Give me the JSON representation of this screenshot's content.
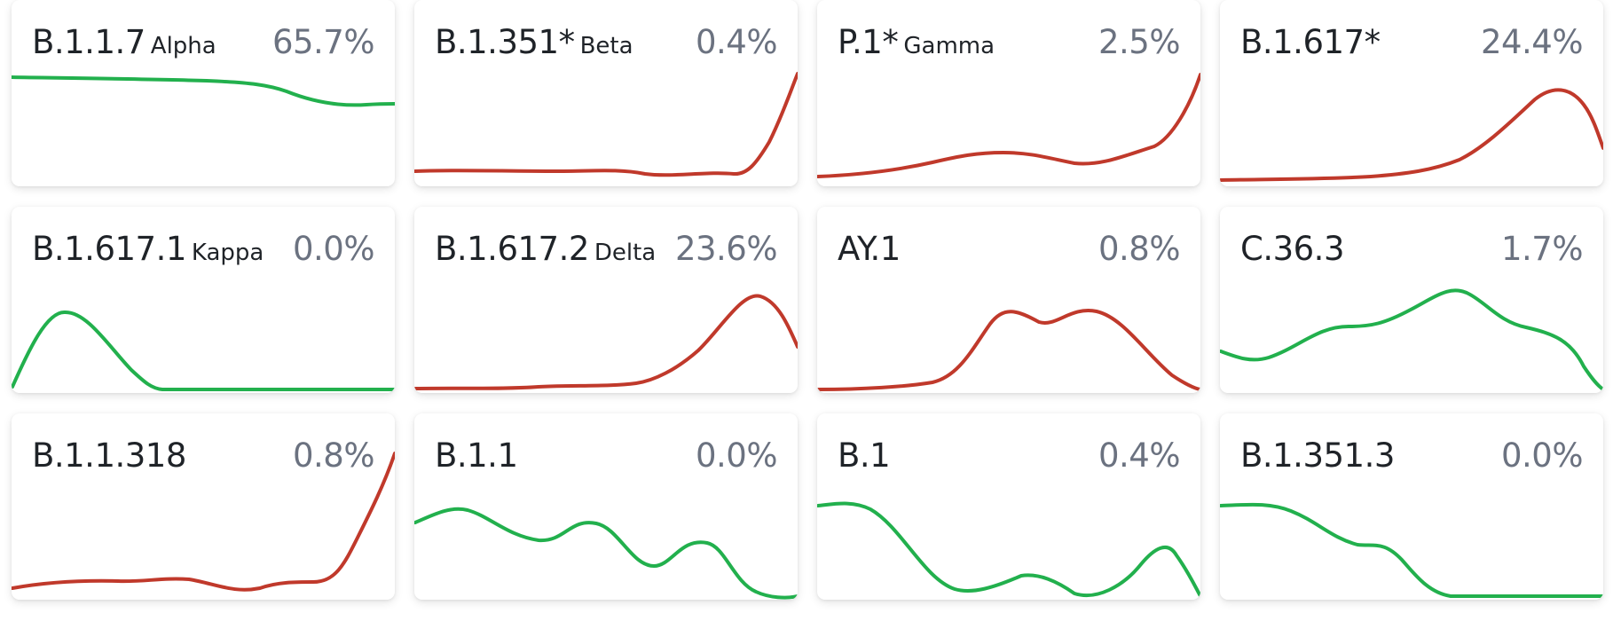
{
  "colors": {
    "decreasing": "#22b04d",
    "increasing": "#c0392b"
  },
  "cards": [
    {
      "lineage": "B.1.1.7",
      "label": "Alpha",
      "percent": "65.7%",
      "trend": "decreasing"
    },
    {
      "lineage": "B.1.351*",
      "label": "Beta",
      "percent": "0.4%",
      "trend": "increasing"
    },
    {
      "lineage": "P.1*",
      "label": "Gamma",
      "percent": "2.5%",
      "trend": "increasing"
    },
    {
      "lineage": "B.1.617*",
      "label": "",
      "percent": "24.4%",
      "trend": "increasing"
    },
    {
      "lineage": "B.1.617.1",
      "label": "Kappa",
      "percent": "0.0%",
      "trend": "decreasing"
    },
    {
      "lineage": "B.1.617.2",
      "label": "Delta",
      "percent": "23.6%",
      "trend": "increasing"
    },
    {
      "lineage": "AY.1",
      "label": "",
      "percent": "0.8%",
      "trend": "increasing"
    },
    {
      "lineage": "C.36.3",
      "label": "",
      "percent": "1.7%",
      "trend": "decreasing"
    },
    {
      "lineage": "B.1.1.318",
      "label": "",
      "percent": "0.8%",
      "trend": "increasing"
    },
    {
      "lineage": "B.1.1",
      "label": "",
      "percent": "0.0%",
      "trend": "decreasing"
    },
    {
      "lineage": "B.1",
      "label": "",
      "percent": "0.4%",
      "trend": "decreasing"
    },
    {
      "lineage": "B.1.351.3",
      "label": "",
      "percent": "0.0%",
      "trend": "decreasing"
    }
  ]
}
